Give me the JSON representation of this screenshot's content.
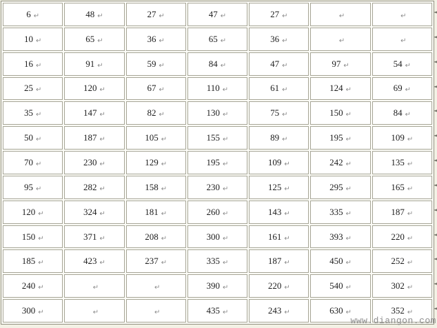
{
  "colors": {
    "page_bg": "#f3f1e5",
    "gap_bg": "#fcfcf7",
    "cell_bg": "#ffffff",
    "border_outer": "#8f8e7e",
    "border_cell": "#a5a495",
    "text": "#1c1c1c",
    "mark": "#8a8a8a",
    "watermark": "#8d8d8d"
  },
  "table": {
    "columns": 7,
    "pilcrow": "↵",
    "row_end_mark": "◄",
    "rows": [
      [
        "6",
        "48",
        "27",
        "47",
        "27",
        "",
        ""
      ],
      [
        "10",
        "65",
        "36",
        "65",
        "36",
        "",
        ""
      ],
      [
        "16",
        "91",
        "59",
        "84",
        "47",
        "97",
        "54"
      ],
      [
        "25",
        "120",
        "67",
        "110",
        "61",
        "124",
        "69"
      ],
      [
        "35",
        "147",
        "82",
        "130",
        "75",
        "150",
        "84"
      ],
      [
        "50",
        "187",
        "105",
        "155",
        "89",
        "195",
        "109"
      ],
      [
        "70",
        "230",
        "129",
        "195",
        "109",
        "242",
        "135"
      ],
      [
        "95",
        "282",
        "158",
        "230",
        "125",
        "295",
        "165"
      ],
      [
        "120",
        "324",
        "181",
        "260",
        "143",
        "335",
        "187"
      ],
      [
        "150",
        "371",
        "208",
        "300",
        "161",
        "393",
        "220"
      ],
      [
        "185",
        "423",
        "237",
        "335",
        "187",
        "450",
        "252"
      ],
      [
        "240",
        "",
        "",
        "390",
        "220",
        "540",
        "302"
      ],
      [
        "300",
        "",
        "",
        "435",
        "243",
        "630",
        "352"
      ]
    ]
  },
  "watermark": {
    "text": "www.diangon.com"
  }
}
